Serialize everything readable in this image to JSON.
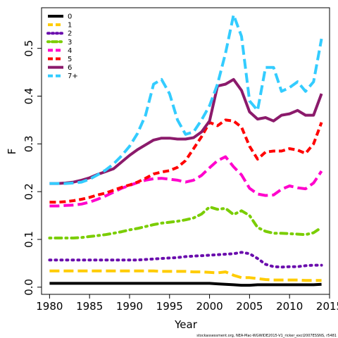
{
  "chart_data": {
    "type": "line",
    "xlabel": "Year",
    "ylabel": "F",
    "xlim": [
      1979,
      2015
    ],
    "ylim": [
      -0.015,
      0.585
    ],
    "x_ticks": [
      1980,
      1985,
      1990,
      1995,
      2000,
      2005,
      2010,
      2015
    ],
    "y_ticks": [
      0.0,
      0.1,
      0.2,
      0.3,
      0.4,
      0.5
    ],
    "y_tick_labels": [
      "0.0",
      "0.1",
      "0.2",
      "0.3",
      "0.4",
      "0.5"
    ],
    "legend_position": "top-left",
    "grid": false,
    "years": [
      1980,
      1981,
      1982,
      1983,
      1984,
      1985,
      1986,
      1987,
      1988,
      1989,
      1990,
      1991,
      1992,
      1993,
      1994,
      1995,
      1996,
      1997,
      1998,
      1999,
      2000,
      2001,
      2002,
      2003,
      2004,
      2005,
      2006,
      2007,
      2008,
      2009,
      2010,
      2011,
      2012,
      2013,
      2014
    ],
    "series": [
      {
        "name": "0",
        "color": "#000000",
        "dash": "solid",
        "values": [
          0.008,
          0.008,
          0.008,
          0.008,
          0.008,
          0.008,
          0.008,
          0.008,
          0.008,
          0.008,
          0.008,
          0.008,
          0.008,
          0.008,
          0.008,
          0.008,
          0.008,
          0.008,
          0.008,
          0.008,
          0.008,
          0.007,
          0.006,
          0.005,
          0.004,
          0.004,
          0.005,
          0.005,
          0.005,
          0.005,
          0.005,
          0.005,
          0.005,
          0.005,
          0.006
        ]
      },
      {
        "name": "1",
        "color": "#FFCC00",
        "dash": "longdash",
        "values": [
          0.034,
          0.034,
          0.034,
          0.034,
          0.034,
          0.034,
          0.034,
          0.034,
          0.034,
          0.034,
          0.034,
          0.034,
          0.034,
          0.034,
          0.033,
          0.033,
          0.033,
          0.033,
          0.032,
          0.032,
          0.031,
          0.03,
          0.032,
          0.025,
          0.02,
          0.02,
          0.018,
          0.016,
          0.015,
          0.015,
          0.015,
          0.015,
          0.014,
          0.014,
          0.014
        ]
      },
      {
        "name": "2",
        "color": "#6A0DAD",
        "dash": "dotted",
        "values": [
          0.057,
          0.057,
          0.057,
          0.057,
          0.057,
          0.057,
          0.057,
          0.057,
          0.057,
          0.057,
          0.057,
          0.057,
          0.058,
          0.059,
          0.06,
          0.061,
          0.062,
          0.064,
          0.065,
          0.066,
          0.067,
          0.068,
          0.069,
          0.07,
          0.073,
          0.07,
          0.06,
          0.048,
          0.043,
          0.042,
          0.043,
          0.043,
          0.045,
          0.046,
          0.046
        ]
      },
      {
        "name": "3",
        "color": "#7ACD00",
        "dash": "dashdot",
        "values": [
          0.103,
          0.103,
          0.103,
          0.103,
          0.104,
          0.106,
          0.108,
          0.11,
          0.113,
          0.116,
          0.12,
          0.123,
          0.127,
          0.131,
          0.134,
          0.136,
          0.138,
          0.141,
          0.145,
          0.153,
          0.168,
          0.163,
          0.165,
          0.152,
          0.16,
          0.15,
          0.125,
          0.117,
          0.113,
          0.113,
          0.112,
          0.111,
          0.11,
          0.114,
          0.125
        ]
      },
      {
        "name": "4",
        "color": "#FF00CC",
        "dash": "longdash",
        "values": [
          0.17,
          0.17,
          0.171,
          0.172,
          0.174,
          0.178,
          0.184,
          0.191,
          0.199,
          0.207,
          0.213,
          0.219,
          0.224,
          0.227,
          0.228,
          0.226,
          0.224,
          0.22,
          0.224,
          0.234,
          0.25,
          0.265,
          0.273,
          0.252,
          0.235,
          0.207,
          0.195,
          0.192,
          0.193,
          0.205,
          0.212,
          0.208,
          0.206,
          0.218,
          0.243
        ]
      },
      {
        "name": "5",
        "color": "#FF0000",
        "dash": "dashed",
        "values": [
          0.178,
          0.178,
          0.179,
          0.181,
          0.184,
          0.188,
          0.193,
          0.197,
          0.203,
          0.209,
          0.214,
          0.22,
          0.228,
          0.237,
          0.241,
          0.244,
          0.251,
          0.265,
          0.29,
          0.315,
          0.345,
          0.338,
          0.35,
          0.348,
          0.335,
          0.295,
          0.268,
          0.283,
          0.285,
          0.285,
          0.29,
          0.287,
          0.28,
          0.3,
          0.345
        ]
      },
      {
        "name": "6",
        "color": "#8B1A6B",
        "dash": "solid",
        "values": [
          0.217,
          0.217,
          0.218,
          0.22,
          0.224,
          0.229,
          0.236,
          0.242,
          0.248,
          0.262,
          0.276,
          0.288,
          0.298,
          0.308,
          0.312,
          0.312,
          0.31,
          0.31,
          0.313,
          0.325,
          0.348,
          0.421,
          0.425,
          0.435,
          0.412,
          0.367,
          0.352,
          0.355,
          0.348,
          0.36,
          0.363,
          0.37,
          0.36,
          0.36,
          0.405
        ]
      },
      {
        "name": "7+",
        "color": "#33CCFF",
        "dash": "longdash",
        "values": [
          0.217,
          0.217,
          0.217,
          0.218,
          0.22,
          0.226,
          0.235,
          0.245,
          0.258,
          0.275,
          0.295,
          0.322,
          0.36,
          0.425,
          0.435,
          0.405,
          0.35,
          0.32,
          0.325,
          0.35,
          0.38,
          0.425,
          0.49,
          0.57,
          0.525,
          0.39,
          0.37,
          0.46,
          0.46,
          0.41,
          0.418,
          0.43,
          0.41,
          0.43,
          0.52
        ]
      }
    ],
    "footer_note": "stockassessment.org, NEA-Mac-WGWIDE2015-V1_ricker_excl2007ESSNS, r5481"
  }
}
